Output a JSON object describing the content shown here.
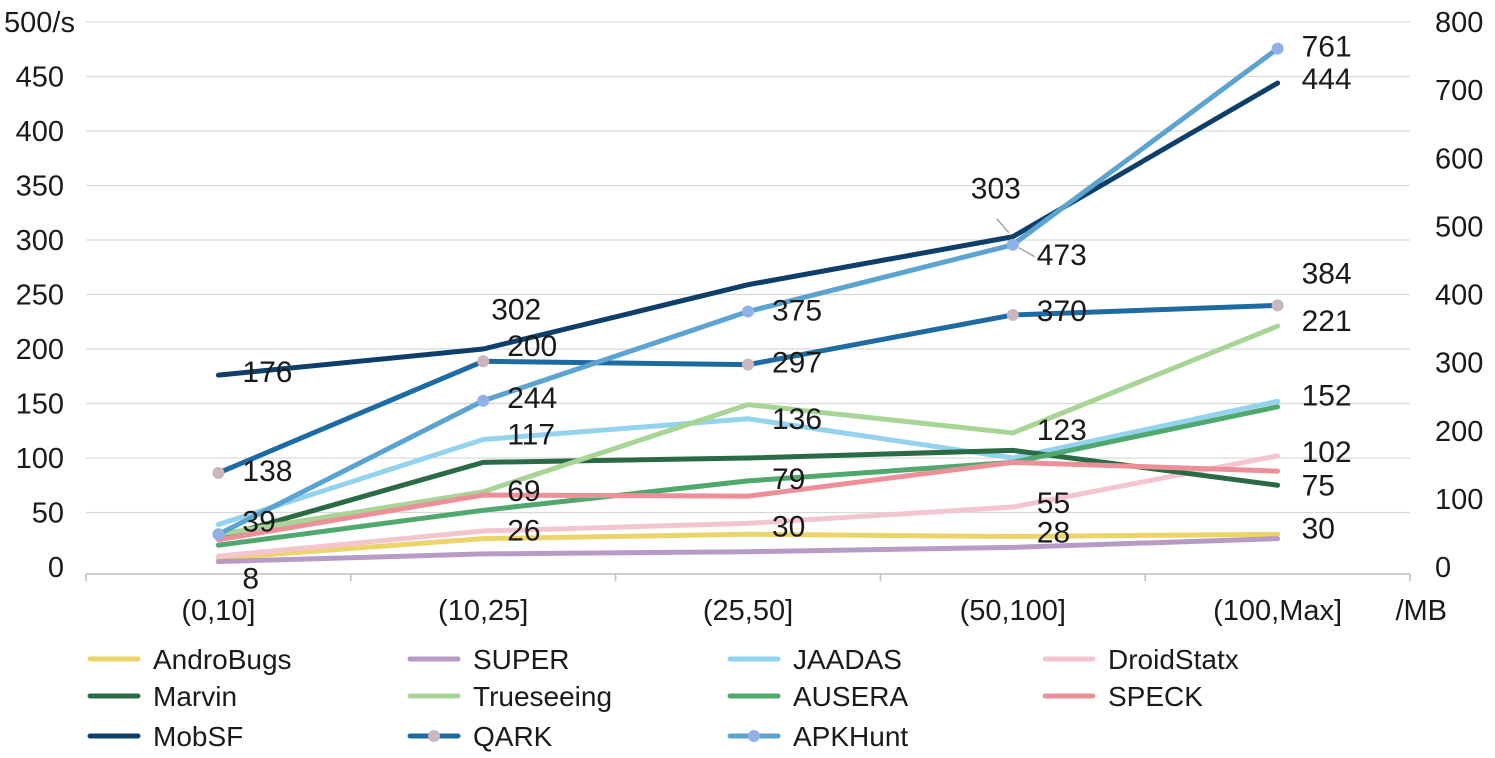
{
  "chart_data": {
    "type": "line",
    "categories": [
      "(0,10]",
      "(10,25]",
      "(25,50]",
      "(50,100]",
      "(100,Max]"
    ],
    "x_unit_label": "/MB",
    "y_left": {
      "unit_label": "500/s",
      "ticks": [
        "0",
        "50",
        "100",
        "150",
        "200",
        "250",
        "300",
        "350",
        "400",
        "450"
      ],
      "range": [
        0,
        500
      ]
    },
    "y_right": {
      "ticks": [
        "0",
        "100",
        "200",
        "300",
        "400",
        "500",
        "600",
        "700",
        "800"
      ],
      "range": [
        0,
        800
      ]
    },
    "grid": true,
    "legend_position": "bottom",
    "series": [
      {
        "name": "AndroBugs",
        "axis": "left",
        "color": "#ecd46a",
        "marker": false,
        "values": [
          8,
          26,
          30,
          28,
          30
        ],
        "labels": [
          "8",
          "26",
          "30",
          "28",
          "30"
        ]
      },
      {
        "name": "SUPER",
        "axis": "left",
        "color": "#b79bc7",
        "marker": false,
        "values": [
          5,
          12,
          14,
          18,
          26
        ],
        "labels": [
          "",
          "",
          "",
          "",
          ""
        ]
      },
      {
        "name": "JAADAS",
        "axis": "left",
        "color": "#94d3ee",
        "marker": false,
        "values": [
          39,
          117,
          136,
          100,
          152
        ],
        "labels": [
          "39",
          "117",
          "136",
          "",
          "152"
        ]
      },
      {
        "name": "DroidStatx",
        "axis": "left",
        "color": "#f3c6cf",
        "marker": false,
        "values": [
          10,
          33,
          40,
          55,
          102
        ],
        "labels": [
          "",
          "",
          "",
          "55",
          "102"
        ]
      },
      {
        "name": "Marvin",
        "axis": "left",
        "color": "#2a6a45",
        "marker": false,
        "values": [
          27,
          96,
          100,
          107,
          75
        ],
        "labels": [
          "",
          "",
          "",
          "",
          "75"
        ]
      },
      {
        "name": "Trueseeing",
        "axis": "left",
        "color": "#a8d596",
        "marker": false,
        "values": [
          30,
          69,
          149,
          123,
          221
        ],
        "labels": [
          "",
          "69",
          "",
          "123",
          "221"
        ]
      },
      {
        "name": "AUSERA",
        "axis": "left",
        "color": "#50a86e",
        "marker": false,
        "values": [
          20,
          52,
          79,
          96,
          147
        ],
        "labels": [
          "",
          "",
          "79",
          "",
          ""
        ]
      },
      {
        "name": "SPECK",
        "axis": "left",
        "color": "#ec8f98",
        "marker": false,
        "values": [
          25,
          66,
          65,
          96,
          88
        ],
        "labels": [
          "",
          "",
          "",
          "",
          ""
        ]
      },
      {
        "name": "MobSF",
        "axis": "left",
        "color": "#0e3f6a",
        "marker": false,
        "values": [
          176,
          200,
          259,
          303,
          444
        ],
        "labels": [
          "176",
          "200",
          "",
          "303",
          "444"
        ]
      },
      {
        "name": "QARK",
        "axis": "right",
        "color": "#1d6ba2",
        "marker": true,
        "marker_color": "#c9b6bf",
        "values": [
          138,
          302,
          297,
          370,
          384
        ],
        "labels": [
          "138",
          "302",
          "297",
          "370",
          "384"
        ]
      },
      {
        "name": "APKHunt",
        "axis": "right",
        "color": "#5ba3d0",
        "marker": true,
        "marker_color": "#8fb1e6",
        "values": [
          48,
          244,
          375,
          473,
          761
        ],
        "labels": [
          "",
          "244",
          "375",
          "473",
          "761"
        ]
      }
    ]
  }
}
